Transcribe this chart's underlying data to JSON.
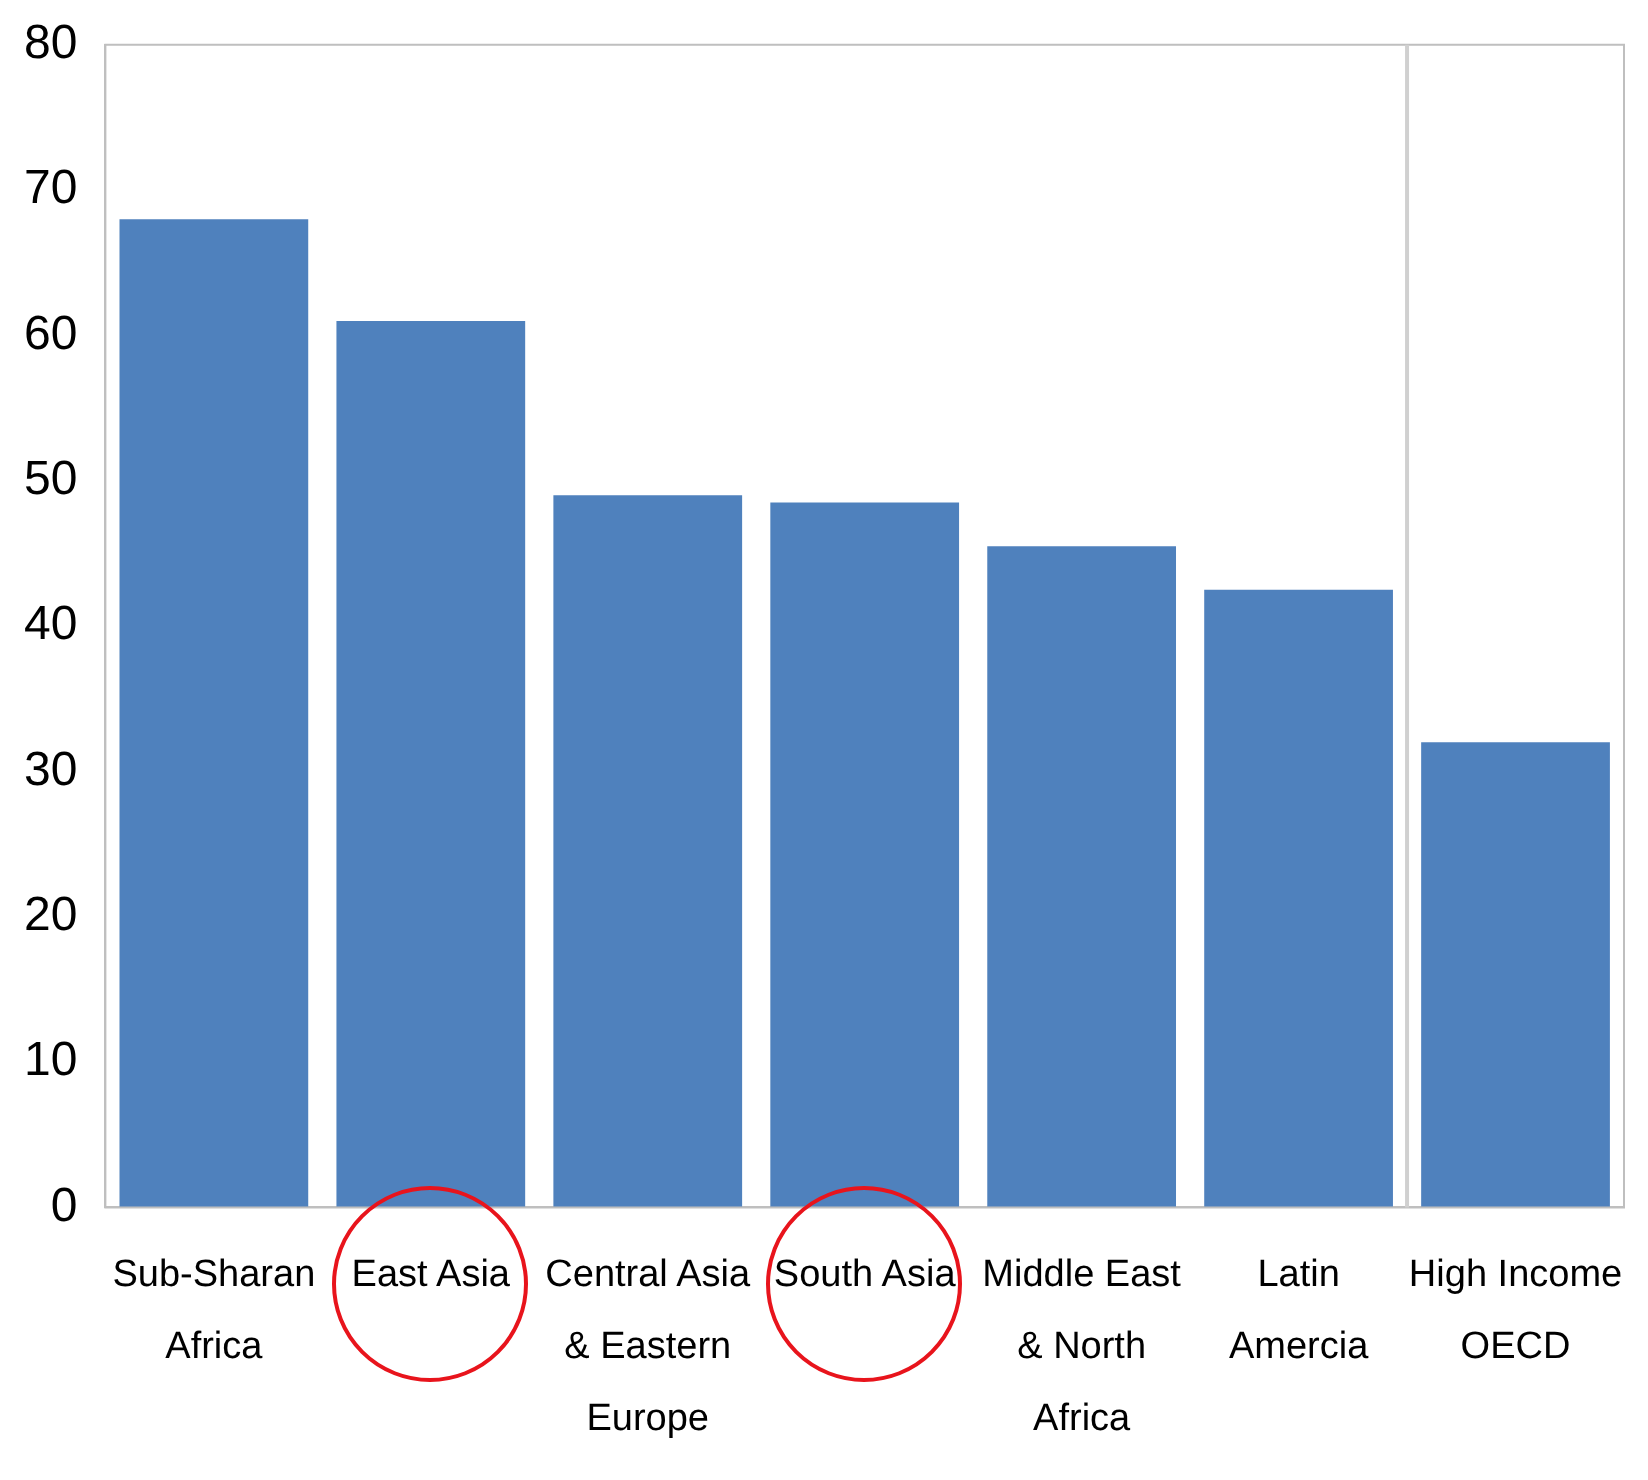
{
  "chart_data": {
    "type": "bar",
    "categories": [
      "Sub-Sharan Africa",
      "East Asia",
      "Central Asia & Eastern Europe",
      "South Asia",
      "Middle East & North Africa",
      "Latin Amercia",
      "High Income OECD"
    ],
    "values": [
      68,
      61,
      49,
      48.5,
      45.5,
      42.5,
      32
    ],
    "color": "#4f81bd",
    "ylim": [
      0,
      80
    ],
    "yticks": [
      0,
      10,
      20,
      30,
      40,
      50,
      60,
      70,
      80
    ],
    "grid": false,
    "legend": false
  }
}
